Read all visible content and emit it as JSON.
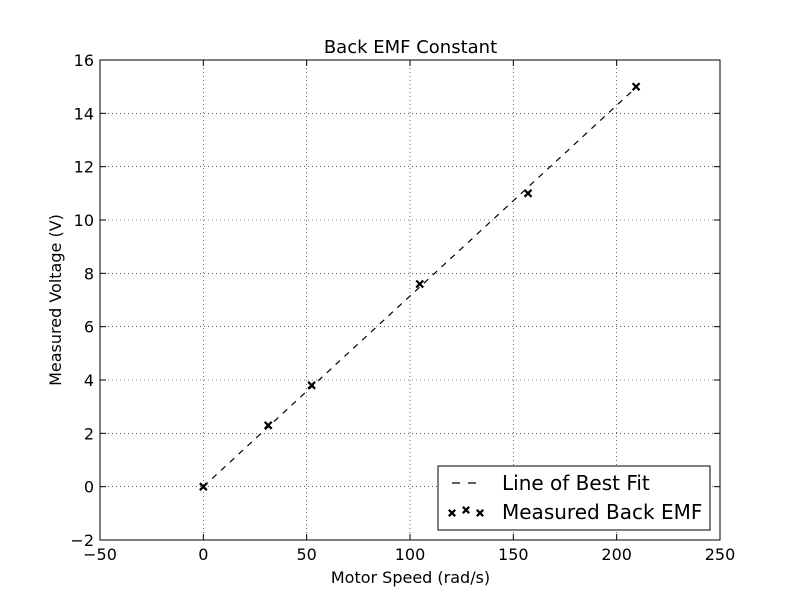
{
  "chart_data": {
    "type": "line",
    "title": "Back EMF Constant",
    "xlabel": "Motor Speed (rad/s)",
    "ylabel": "Measured Voltage (V)",
    "xlim": [
      -50,
      250
    ],
    "ylim": [
      -2,
      16
    ],
    "xticks": [
      -50,
      0,
      50,
      100,
      150,
      200,
      250
    ],
    "yticks": [
      -2,
      0,
      2,
      4,
      6,
      8,
      10,
      12,
      14,
      16
    ],
    "xtick_labels": [
      "−50",
      "0",
      "50",
      "100",
      "150",
      "200",
      "250"
    ],
    "ytick_labels": [
      "−2",
      "0",
      "2",
      "4",
      "6",
      "8",
      "10",
      "12",
      "14",
      "16"
    ],
    "grid": true,
    "legend_position": "bottom-right",
    "series": [
      {
        "name": "Line of Best Fit",
        "style": "dashed-line",
        "color": "#000000",
        "x": [
          0,
          209.4
        ],
        "y": [
          0,
          14.97
        ]
      },
      {
        "name": "Measured Back EMF",
        "style": "x-markers",
        "color": "#000000",
        "x": [
          0,
          31.4,
          52.4,
          104.7,
          157.1,
          209.4
        ],
        "y": [
          0.0,
          2.3,
          3.8,
          7.6,
          11.0,
          15.0
        ]
      }
    ]
  }
}
